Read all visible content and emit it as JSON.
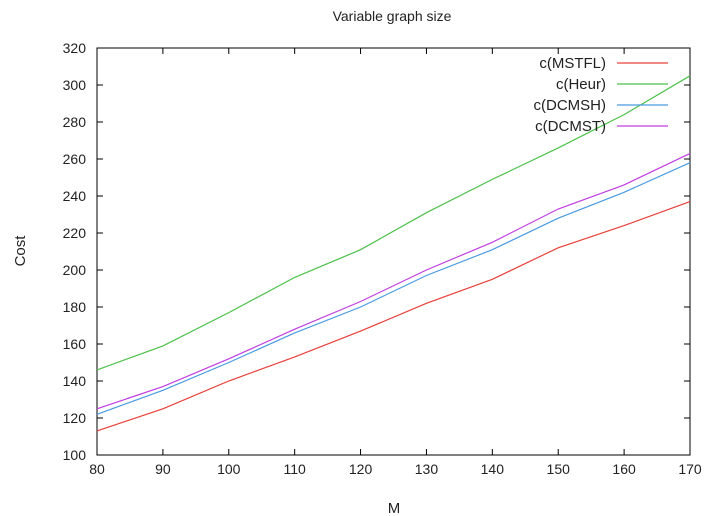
{
  "chart_data": {
    "type": "line",
    "title": "Variable graph size",
    "xlabel": "M",
    "ylabel": "Cost",
    "x": [
      80,
      90,
      100,
      110,
      120,
      130,
      140,
      150,
      160,
      170
    ],
    "xlim": [
      80,
      170
    ],
    "ylim": [
      100,
      320
    ],
    "xticks": [
      80,
      90,
      100,
      110,
      120,
      130,
      140,
      150,
      160,
      170
    ],
    "yticks": [
      100,
      120,
      140,
      160,
      180,
      200,
      220,
      240,
      260,
      280,
      300,
      320
    ],
    "grid": false,
    "legend_position": "top-right",
    "series": [
      {
        "name": "c(MSTFL)",
        "color": "#e8403a",
        "values": [
          113,
          125,
          140,
          153,
          167,
          182,
          195,
          212,
          224,
          237
        ]
      },
      {
        "name": "c(Heur)",
        "color": "#4cc04a",
        "values": [
          146,
          159,
          177,
          196,
          211,
          231,
          249,
          266,
          284,
          305
        ]
      },
      {
        "name": "c(DCMSH)",
        "color": "#4a9be0",
        "values": [
          122,
          135,
          150,
          166,
          180,
          197,
          211,
          228,
          242,
          258
        ]
      },
      {
        "name": "c(DCMST)",
        "color": "#c03ee0",
        "values": [
          125,
          137,
          152,
          168,
          183,
          200,
          215,
          233,
          246,
          263
        ]
      }
    ]
  }
}
